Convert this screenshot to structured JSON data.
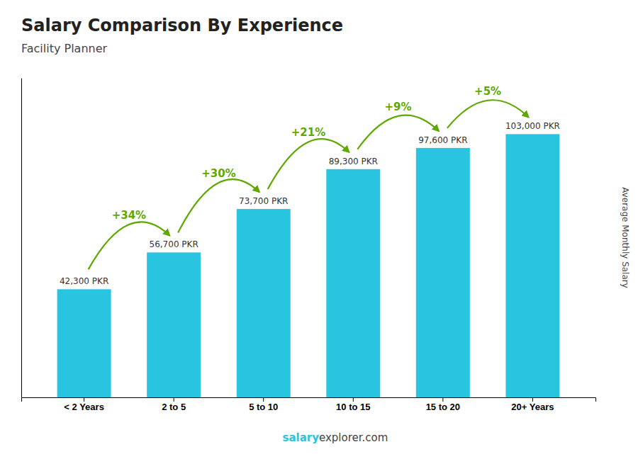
{
  "chart_data": {
    "type": "bar",
    "title": "Salary Comparison By Experience",
    "subtitle": "Facility Planner",
    "ylabel": "Average Monthly Salary",
    "categories": [
      "< 2 Years",
      "2 to 5",
      "5 to 10",
      "10 to 15",
      "15 to 20",
      "20+ Years"
    ],
    "values": [
      42300,
      56700,
      73700,
      89300,
      97600,
      103000
    ],
    "value_labels": [
      "42,300 PKR",
      "56,700 PKR",
      "73,700 PKR",
      "89,300 PKR",
      "97,600 PKR",
      "103,000 PKR"
    ],
    "data_labels": true,
    "annotations": [
      "+34%",
      "+30%",
      "+21%",
      "+9%",
      "+5%"
    ],
    "footer": [
      "salary",
      "explorer.com"
    ],
    "color": "#29c4e0",
    "ylim": [
      0,
      125000
    ],
    "tick_labels": "x",
    "grid": false
  }
}
